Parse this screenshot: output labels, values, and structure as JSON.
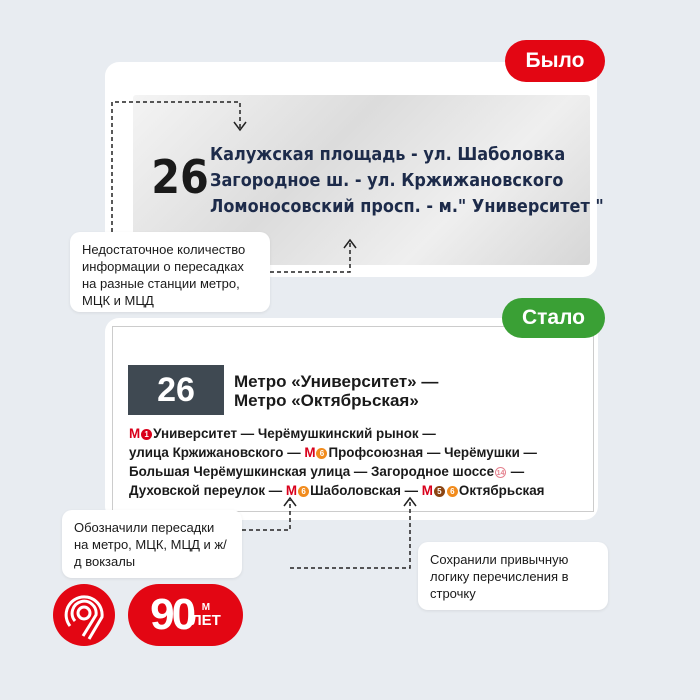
{
  "before": {
    "badge": "Было",
    "number": "26",
    "lines": [
      "Калужская площадь - ул. Шаболовка",
      "Загородное ш. - ул. Кржижановского",
      "Ломоносовский просп. - м.\" Университет \""
    ],
    "note": "Недостаточное количество информации о пересадках на разные станции метро, МЦК и МЦД"
  },
  "after": {
    "badge": "Стало",
    "number": "26",
    "title_lines": [
      "Метро «Университет» —",
      "Метро «Октябрьская»"
    ],
    "route": {
      "m": "М",
      "l1": "1",
      "l6": "6",
      "l5": "5",
      "l14": "14",
      "t1": "Университет — Черёмушкинский рынок —",
      "t2a": "улица Кржижановского — ",
      "t2b": "Профсоюзная — Черёмушки —",
      "t3a": "Большая Черёмушкинская улица — Загородное шоссе",
      "t3b": " —",
      "t4a": "Духовской переулок — ",
      "t4b": "Шаболовская — ",
      "t4c": "Октябрьская"
    },
    "note_left": "Обозначили пересадки на метро, МЦК, МЦД и ж/д вокзалы",
    "note_right": "Сохранили привычную логику перечисления в строчку"
  },
  "logos": {
    "anniversary_number": "90",
    "anniversary_m": "М",
    "anniversary_word": "ЛЕТ"
  },
  "colors": {
    "red": "#e30613",
    "green": "#3aa035",
    "line1": "#d9001b",
    "line6": "#f18b1d",
    "line5": "#8b4513",
    "line14": "#e4818e",
    "plate": "#3f4952"
  }
}
